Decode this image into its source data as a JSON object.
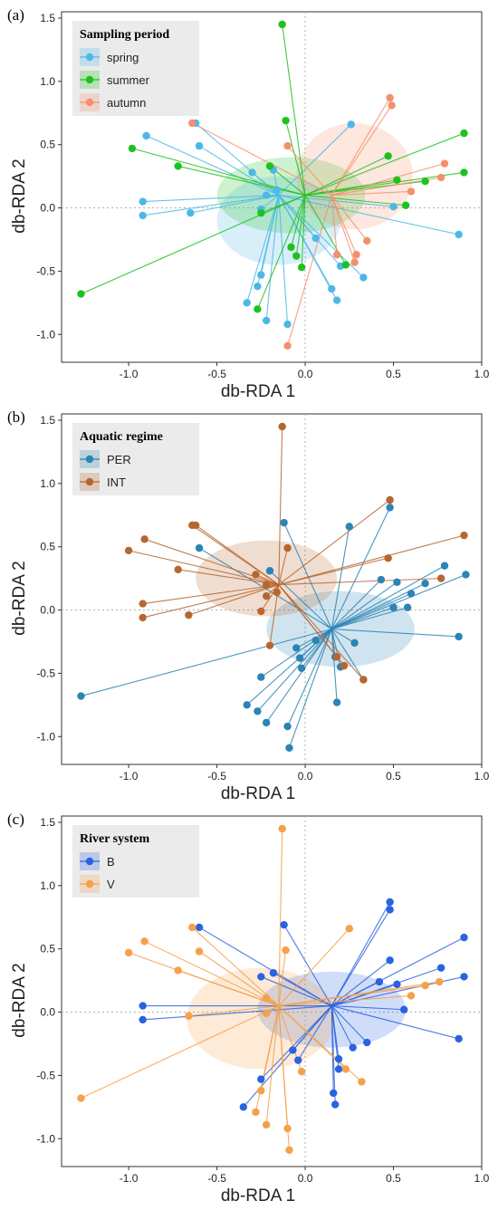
{
  "chart_data": [
    {
      "panel_label": "(a)",
      "type": "scatter",
      "subtype": "db-RDA ordination with group centroid spiders and ellipses",
      "xlabel": "db-RDA 1",
      "ylabel": "db-RDA 2",
      "xlim": [
        -1.38,
        1.0
      ],
      "ylim": [
        -1.22,
        1.55
      ],
      "xticks": [
        -1.0,
        -0.5,
        0.0,
        0.5,
        1.0
      ],
      "yticks": [
        -1.0,
        -0.5,
        0.0,
        0.5,
        1.0,
        1.5
      ],
      "xtick_labels": [
        "-1.0",
        "-0.5",
        "0.0",
        "0.5",
        "1.0"
      ],
      "ytick_labels": [
        "-1.0",
        "-0.5",
        "0.0",
        "0.5",
        "1.0",
        "1.5"
      ],
      "reference_lines": "dotted lines at x = 0 and y = 0",
      "grid": false,
      "legend_title": "Sampling period",
      "legend_position": "top-left",
      "series": [
        {
          "name": "spring",
          "color": "#4db8e8",
          "centroid": [
            -0.15,
            0.1
          ],
          "ellipse": {
            "cx": -0.15,
            "cy": -0.1,
            "rx": 0.35,
            "ry": 0.35
          },
          "points": [
            [
              -0.62,
              0.67
            ],
            [
              -0.6,
              0.49
            ],
            [
              -0.9,
              0.57
            ],
            [
              -0.92,
              0.05
            ],
            [
              -0.92,
              -0.06
            ],
            [
              -0.65,
              -0.04
            ],
            [
              -0.3,
              0.28
            ],
            [
              -0.18,
              0.3
            ],
            [
              -0.22,
              0.1
            ],
            [
              -0.16,
              0.14
            ],
            [
              -0.25,
              -0.01
            ],
            [
              -0.25,
              -0.53
            ],
            [
              -0.27,
              -0.62
            ],
            [
              -0.33,
              -0.75
            ],
            [
              -0.22,
              -0.89
            ],
            [
              -0.1,
              -0.92
            ],
            [
              0.06,
              -0.24
            ],
            [
              0.15,
              -0.64
            ],
            [
              0.18,
              -0.73
            ],
            [
              0.2,
              -0.46
            ],
            [
              0.26,
              0.66
            ],
            [
              0.33,
              -0.55
            ],
            [
              0.5,
              0.01
            ],
            [
              0.87,
              -0.21
            ]
          ]
        },
        {
          "name": "summer",
          "color": "#1ec21e",
          "centroid": [
            0.0,
            0.1
          ],
          "ellipse": {
            "cx": -0.08,
            "cy": 0.1,
            "rx": 0.42,
            "ry": 0.3
          },
          "points": [
            [
              -1.27,
              -0.68
            ],
            [
              -0.98,
              0.47
            ],
            [
              -0.72,
              0.33
            ],
            [
              -0.25,
              -0.04
            ],
            [
              -0.2,
              0.33
            ],
            [
              -0.13,
              1.45
            ],
            [
              -0.11,
              0.69
            ],
            [
              -0.08,
              -0.31
            ],
            [
              -0.05,
              -0.38
            ],
            [
              -0.02,
              -0.47
            ],
            [
              -0.27,
              -0.8
            ],
            [
              0.23,
              -0.45
            ],
            [
              0.47,
              0.41
            ],
            [
              0.52,
              0.22
            ],
            [
              0.57,
              0.02
            ],
            [
              0.68,
              0.21
            ],
            [
              0.9,
              0.59
            ],
            [
              0.9,
              0.28
            ]
          ]
        },
        {
          "name": "autumn",
          "color": "#f4906c",
          "centroid": [
            0.15,
            0.1
          ],
          "ellipse": {
            "cx": 0.28,
            "cy": 0.25,
            "rx": 0.33,
            "ry": 0.42
          },
          "points": [
            [
              -0.64,
              0.67
            ],
            [
              -0.1,
              0.49
            ],
            [
              -0.1,
              -1.09
            ],
            [
              0.18,
              -0.37
            ],
            [
              0.28,
              -0.43
            ],
            [
              0.29,
              -0.37
            ],
            [
              0.35,
              -0.26
            ],
            [
              0.48,
              0.87
            ],
            [
              0.49,
              0.81
            ],
            [
              0.6,
              0.13
            ],
            [
              0.77,
              0.24
            ],
            [
              0.79,
              0.35
            ]
          ]
        }
      ]
    },
    {
      "panel_label": "(b)",
      "type": "scatter",
      "subtype": "db-RDA ordination with group centroid spiders and ellipses",
      "xlabel": "db-RDA 1",
      "ylabel": "db-RDA 2",
      "xlim": [
        -1.38,
        1.0
      ],
      "ylim": [
        -1.22,
        1.55
      ],
      "xticks": [
        -1.0,
        -0.5,
        0.0,
        0.5,
        1.0
      ],
      "yticks": [
        -1.0,
        -0.5,
        0.0,
        0.5,
        1.0,
        1.5
      ],
      "xtick_labels": [
        "-1.0",
        "-0.5",
        "0.0",
        "0.5",
        "1.0"
      ],
      "ytick_labels": [
        "-1.0",
        "-0.5",
        "0.0",
        "0.5",
        "1.0",
        "1.5"
      ],
      "reference_lines": "dotted lines at x = 0 and y = 0",
      "grid": false,
      "legend_title": "Aquatic regime",
      "legend_position": "top-left",
      "series": [
        {
          "name": "PER",
          "color": "#2b84b5",
          "centroid": [
            0.15,
            -0.15
          ],
          "ellipse": {
            "cx": 0.2,
            "cy": -0.15,
            "rx": 0.42,
            "ry": 0.3
          },
          "points": [
            [
              -1.27,
              -0.68
            ],
            [
              -0.6,
              0.49
            ],
            [
              -0.33,
              -0.75
            ],
            [
              -0.27,
              -0.8
            ],
            [
              -0.22,
              -0.89
            ],
            [
              -0.25,
              -0.53
            ],
            [
              -0.2,
              0.31
            ],
            [
              -0.12,
              0.69
            ],
            [
              -0.1,
              -0.92
            ],
            [
              -0.09,
              -1.09
            ],
            [
              -0.05,
              -0.3
            ],
            [
              -0.03,
              -0.38
            ],
            [
              -0.02,
              -0.46
            ],
            [
              0.06,
              -0.24
            ],
            [
              0.17,
              -0.37
            ],
            [
              0.18,
              -0.73
            ],
            [
              0.2,
              -0.45
            ],
            [
              0.25,
              0.66
            ],
            [
              0.28,
              -0.26
            ],
            [
              0.33,
              -0.55
            ],
            [
              0.43,
              0.24
            ],
            [
              0.48,
              0.81
            ],
            [
              0.5,
              0.02
            ],
            [
              0.52,
              0.22
            ],
            [
              0.58,
              0.02
            ],
            [
              0.6,
              0.13
            ],
            [
              0.68,
              0.21
            ],
            [
              0.79,
              0.35
            ],
            [
              0.87,
              -0.21
            ],
            [
              0.91,
              0.28
            ]
          ]
        },
        {
          "name": "INT",
          "color": "#b8662f",
          "centroid": [
            -0.15,
            0.2
          ],
          "ellipse": {
            "cx": -0.22,
            "cy": 0.25,
            "rx": 0.4,
            "ry": 0.3
          },
          "points": [
            [
              -1.0,
              0.47
            ],
            [
              -0.91,
              0.56
            ],
            [
              -0.92,
              0.05
            ],
            [
              -0.92,
              -0.06
            ],
            [
              -0.72,
              0.32
            ],
            [
              -0.66,
              -0.04
            ],
            [
              -0.64,
              0.67
            ],
            [
              -0.62,
              0.67
            ],
            [
              -0.28,
              0.28
            ],
            [
              -0.25,
              -0.01
            ],
            [
              -0.22,
              0.11
            ],
            [
              -0.22,
              0.2
            ],
            [
              -0.2,
              -0.28
            ],
            [
              -0.16,
              0.14
            ],
            [
              -0.13,
              1.45
            ],
            [
              -0.1,
              0.49
            ],
            [
              0.18,
              -0.37
            ],
            [
              0.22,
              -0.44
            ],
            [
              0.33,
              -0.55
            ],
            [
              0.47,
              0.41
            ],
            [
              0.48,
              0.87
            ],
            [
              0.77,
              0.25
            ],
            [
              0.9,
              0.59
            ]
          ]
        }
      ]
    },
    {
      "panel_label": "(c)",
      "type": "scatter",
      "subtype": "db-RDA ordination with group centroid spiders and ellipses",
      "xlabel": "db-RDA 1",
      "ylabel": "db-RDA 2",
      "xlim": [
        -1.38,
        1.0
      ],
      "ylim": [
        -1.22,
        1.55
      ],
      "xticks": [
        -1.0,
        -0.5,
        0.0,
        0.5,
        1.0
      ],
      "yticks": [
        -1.0,
        -0.5,
        0.0,
        0.5,
        1.0,
        1.5
      ],
      "xtick_labels": [
        "-1.0",
        "-0.5",
        "0.0",
        "0.5",
        "1.0"
      ],
      "ytick_labels": [
        "-1.0",
        "-0.5",
        "0.0",
        "0.5",
        "1.0",
        "1.5"
      ],
      "reference_lines": "dotted lines at x = 0 and y = 0",
      "grid": false,
      "legend_title": "River system",
      "legend_position": "top-left",
      "series": [
        {
          "name": "B",
          "color": "#2a63e0",
          "centroid": [
            0.15,
            0.05
          ],
          "ellipse": {
            "cx": 0.15,
            "cy": 0.02,
            "rx": 0.42,
            "ry": 0.3
          },
          "points": [
            [
              -0.92,
              0.05
            ],
            [
              -0.92,
              -0.06
            ],
            [
              -0.6,
              0.67
            ],
            [
              -0.35,
              -0.75
            ],
            [
              -0.25,
              0.28
            ],
            [
              -0.25,
              -0.53
            ],
            [
              -0.18,
              0.31
            ],
            [
              -0.12,
              0.69
            ],
            [
              -0.07,
              -0.3
            ],
            [
              -0.04,
              -0.38
            ],
            [
              0.16,
              -0.64
            ],
            [
              0.17,
              -0.73
            ],
            [
              0.19,
              -0.37
            ],
            [
              0.19,
              -0.45
            ],
            [
              0.27,
              -0.28
            ],
            [
              0.35,
              -0.24
            ],
            [
              0.42,
              0.24
            ],
            [
              0.48,
              0.87
            ],
            [
              0.48,
              0.81
            ],
            [
              0.48,
              0.41
            ],
            [
              0.52,
              0.22
            ],
            [
              0.56,
              0.02
            ],
            [
              0.77,
              0.35
            ],
            [
              0.87,
              -0.21
            ],
            [
              0.9,
              0.59
            ],
            [
              0.9,
              0.28
            ]
          ]
        },
        {
          "name": "V",
          "color": "#f5a04a",
          "centroid": [
            -0.15,
            0.05
          ],
          "ellipse": {
            "cx": -0.25,
            "cy": -0.05,
            "rx": 0.42,
            "ry": 0.4
          },
          "points": [
            [
              -1.27,
              -0.68
            ],
            [
              -1.0,
              0.47
            ],
            [
              -0.91,
              0.56
            ],
            [
              -0.72,
              0.33
            ],
            [
              -0.66,
              -0.03
            ],
            [
              -0.64,
              0.67
            ],
            [
              -0.6,
              0.48
            ],
            [
              -0.28,
              -0.79
            ],
            [
              -0.25,
              -0.62
            ],
            [
              -0.22,
              -0.89
            ],
            [
              -0.22,
              0.11
            ],
            [
              -0.22,
              -0.01
            ],
            [
              -0.13,
              1.45
            ],
            [
              -0.11,
              0.49
            ],
            [
              -0.1,
              -0.92
            ],
            [
              -0.09,
              -1.09
            ],
            [
              -0.02,
              -0.47
            ],
            [
              0.25,
              0.66
            ],
            [
              0.32,
              -0.55
            ],
            [
              0.23,
              -0.45
            ],
            [
              0.6,
              0.13
            ],
            [
              0.68,
              0.21
            ],
            [
              0.76,
              0.24
            ]
          ]
        }
      ]
    }
  ]
}
